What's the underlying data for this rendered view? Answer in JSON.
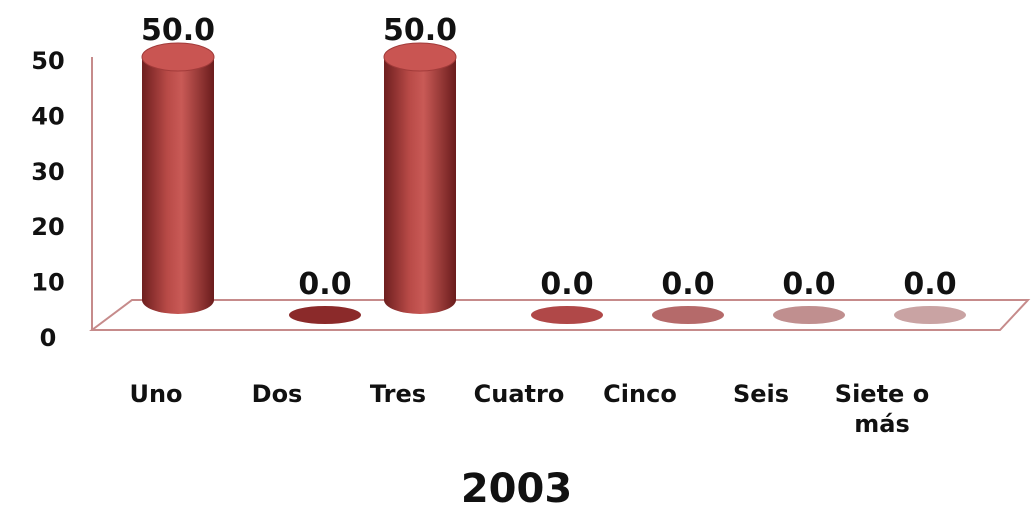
{
  "chart_data": {
    "type": "bar",
    "title": "2003",
    "xlabel": "",
    "ylabel": "",
    "categories": [
      "Uno",
      "Dos",
      "Tres",
      "Cuatro",
      "Cinco",
      "Seis",
      "Siete o más"
    ],
    "category_lines": [
      [
        "Uno"
      ],
      [
        "Dos"
      ],
      [
        "Tres"
      ],
      [
        "Cuatro"
      ],
      [
        "Cinco"
      ],
      [
        "Seis"
      ],
      [
        "Siete o",
        "más"
      ]
    ],
    "values": [
      50.0,
      0.0,
      50.0,
      0.0,
      0.0,
      0.0,
      0.0
    ],
    "value_labels": [
      "50.0",
      "0.0",
      "50.0",
      "0.0",
      "0.0",
      "0.0",
      "0.0"
    ],
    "yticks": [
      "0",
      "10",
      "20",
      "30",
      "40",
      "50"
    ],
    "ylim": [
      0,
      50
    ],
    "grid": false,
    "legend": "none",
    "style": "3d-cylinder",
    "colors": [
      "#8b2a2a",
      "#8b2a2a",
      "#a83c3c",
      "#b04848",
      "#b56a6a",
      "#c08f8f",
      "#c9a3a3"
    ],
    "floor_color": "#c68b8b"
  }
}
